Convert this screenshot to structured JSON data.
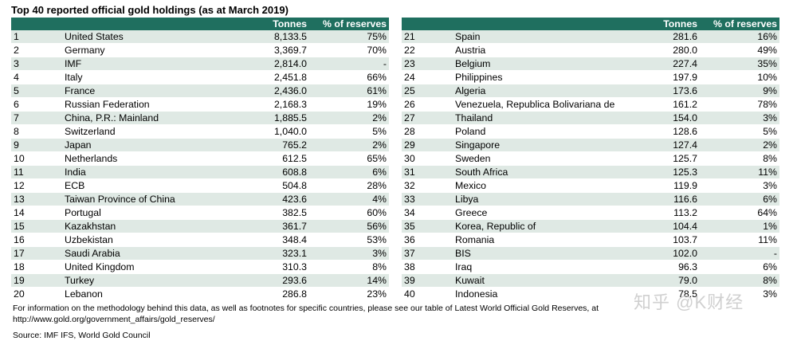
{
  "title": "Top 40 reported official gold holdings (as at March 2019)",
  "headers": {
    "rank": "",
    "country": "",
    "tonnes": "Tonnes",
    "pct": "% of reserves"
  },
  "left_rows": [
    {
      "rank": "1",
      "country": "United States",
      "tonnes": "8,133.5",
      "pct": "75%"
    },
    {
      "rank": "2",
      "country": "Germany",
      "tonnes": "3,369.7",
      "pct": "70%"
    },
    {
      "rank": "3",
      "country": "IMF",
      "tonnes": "2,814.0",
      "pct": "-"
    },
    {
      "rank": "4",
      "country": "Italy",
      "tonnes": "2,451.8",
      "pct": "66%"
    },
    {
      "rank": "5",
      "country": "France",
      "tonnes": "2,436.0",
      "pct": "61%"
    },
    {
      "rank": "6",
      "country": "Russian Federation",
      "tonnes": "2,168.3",
      "pct": "19%"
    },
    {
      "rank": "7",
      "country": "China, P.R.: Mainland",
      "tonnes": "1,885.5",
      "pct": "2%"
    },
    {
      "rank": "8",
      "country": "Switzerland",
      "tonnes": "1,040.0",
      "pct": "5%"
    },
    {
      "rank": "9",
      "country": "Japan",
      "tonnes": "765.2",
      "pct": "2%"
    },
    {
      "rank": "10",
      "country": "Netherlands",
      "tonnes": "612.5",
      "pct": "65%"
    },
    {
      "rank": "11",
      "country": "India",
      "tonnes": "608.8",
      "pct": "6%"
    },
    {
      "rank": "12",
      "country": "ECB",
      "tonnes": "504.8",
      "pct": "28%"
    },
    {
      "rank": "13",
      "country": "Taiwan Province of China",
      "tonnes": "423.6",
      "pct": "4%"
    },
    {
      "rank": "14",
      "country": "Portugal",
      "tonnes": "382.5",
      "pct": "60%"
    },
    {
      "rank": "15",
      "country": "Kazakhstan",
      "tonnes": "361.7",
      "pct": "56%"
    },
    {
      "rank": "16",
      "country": "Uzbekistan",
      "tonnes": "348.4",
      "pct": "53%"
    },
    {
      "rank": "17",
      "country": "Saudi Arabia",
      "tonnes": "323.1",
      "pct": "3%"
    },
    {
      "rank": "18",
      "country": "United Kingdom",
      "tonnes": "310.3",
      "pct": "8%"
    },
    {
      "rank": "19",
      "country": "Turkey",
      "tonnes": "293.6",
      "pct": "14%"
    },
    {
      "rank": "20",
      "country": "Lebanon",
      "tonnes": "286.8",
      "pct": "23%"
    }
  ],
  "right_rows": [
    {
      "rank": "21",
      "country": "Spain",
      "tonnes": "281.6",
      "pct": "16%"
    },
    {
      "rank": "22",
      "country": "Austria",
      "tonnes": "280.0",
      "pct": "49%"
    },
    {
      "rank": "23",
      "country": "Belgium",
      "tonnes": "227.4",
      "pct": "35%"
    },
    {
      "rank": "24",
      "country": "Philippines",
      "tonnes": "197.9",
      "pct": "10%"
    },
    {
      "rank": "25",
      "country": "Algeria",
      "tonnes": "173.6",
      "pct": "9%"
    },
    {
      "rank": "26",
      "country": "Venezuela, Republica Bolivariana de",
      "tonnes": "161.2",
      "pct": "78%"
    },
    {
      "rank": "27",
      "country": "Thailand",
      "tonnes": "154.0",
      "pct": "3%"
    },
    {
      "rank": "28",
      "country": "Poland",
      "tonnes": "128.6",
      "pct": "5%"
    },
    {
      "rank": "29",
      "country": "Singapore",
      "tonnes": "127.4",
      "pct": "2%"
    },
    {
      "rank": "30",
      "country": "Sweden",
      "tonnes": "125.7",
      "pct": "8%"
    },
    {
      "rank": "31",
      "country": "South Africa",
      "tonnes": "125.3",
      "pct": "11%"
    },
    {
      "rank": "32",
      "country": "Mexico",
      "tonnes": "119.9",
      "pct": "3%"
    },
    {
      "rank": "33",
      "country": "Libya",
      "tonnes": "116.6",
      "pct": "6%"
    },
    {
      "rank": "34",
      "country": "Greece",
      "tonnes": "113.2",
      "pct": "64%"
    },
    {
      "rank": "35",
      "country": "Korea, Republic of",
      "tonnes": "104.4",
      "pct": "1%"
    },
    {
      "rank": "36",
      "country": "Romania",
      "tonnes": "103.7",
      "pct": "11%"
    },
    {
      "rank": "37",
      "country": "BIS",
      "tonnes": "102.0",
      "pct": "-"
    },
    {
      "rank": "38",
      "country": "Iraq",
      "tonnes": "96.3",
      "pct": "6%"
    },
    {
      "rank": "39",
      "country": "Kuwait",
      "tonnes": "79.0",
      "pct": "8%"
    },
    {
      "rank": "40",
      "country": "Indonesia",
      "tonnes": "78.5",
      "pct": "3%"
    }
  ],
  "footnote_line1": "For information on the methodology behind this data, as well as footnotes for specific countries, please see our table of Latest World Official Gold Reserves, at",
  "footnote_line2": "http://www.gold.org/government_affairs/gold_reserves/",
  "source": "Source: IMF IFS, World Gold Council",
  "watermark": "知乎 @K财经",
  "colors": {
    "header_bg": "#1f6f5f",
    "stripe": "#dfe9e4"
  }
}
